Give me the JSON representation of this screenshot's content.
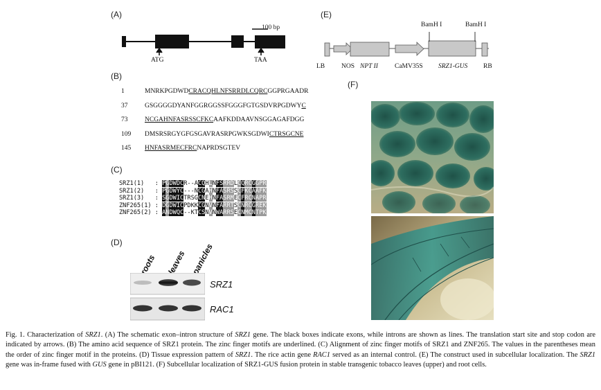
{
  "panelA": {
    "label": "(A)",
    "scale": "100 bp",
    "start": "ATG",
    "stop": "TAA"
  },
  "panelB": {
    "label": "(B)",
    "rows": [
      {
        "num": "1",
        "segs": [
          {
            "t": "MNRKPGDWD",
            "u": false
          },
          {
            "t": "CRACQHLNFSRRDLCQRC",
            "u": true
          },
          {
            "t": "GGPRGAADR",
            "u": false
          }
        ]
      },
      {
        "num": "37",
        "segs": [
          {
            "t": "GSGGGGDYANFGGRGGSSFGGGFGTGSDVRPGDWY",
            "u": false
          },
          {
            "t": "C",
            "u": true
          }
        ]
      },
      {
        "num": "73",
        "segs": [
          {
            "t": "NCGAHNFASRSSCFKC",
            "u": true
          },
          {
            "t": "AAFKDDAAVNSGGAGAFDGG",
            "u": false
          }
        ]
      },
      {
        "num": "109",
        "segs": [
          {
            "t": "DMSRSRGYGFGSGAVRASRPGWKSGDWI",
            "u": false
          },
          {
            "t": "CTRSGCNE",
            "u": true
          }
        ]
      },
      {
        "num": "145",
        "segs": [
          {
            "t": "HNFASRMECFRC",
            "u": true
          },
          {
            "t": "NAPRDSGTEV",
            "u": false
          }
        ]
      }
    ]
  },
  "panelC": {
    "label": "(C)",
    "rows": [
      {
        "name": "SRZ1(1)",
        "seq": "PGDWDCR--ACQHLNFSRRDLCQRCGGPR"
      },
      {
        "name": "SRZ1(2)",
        "seq": "PGDWYC---NCGAHNFASRSSCFKCAAFK"
      },
      {
        "name": "SRZ1(3)",
        "seq": "SGDWICTRSGCNEHNFASRMECFRCNAPR"
      },
      {
        "name": "ZNF265(1)",
        "seq": "DGDWICPDKKCGNVNFARRTSCNRCGREK"
      },
      {
        "name": "ZNF265(2)",
        "seq": "ANDWQC--KTCSNVNWARRSECNMCNTPK"
      }
    ]
  },
  "panelD": {
    "label": "(D)",
    "lanes": [
      "roots",
      "leaves",
      "panicles"
    ],
    "genes": [
      "SRZ1",
      "RAC1"
    ]
  },
  "panelE": {
    "label": "(E)",
    "site1": "BamH I",
    "site2": "BamH I",
    "labels": {
      "lb": "LB",
      "nos": "NOS",
      "npt": "NPT II",
      "camv": "CaMV35S",
      "srz": "SRZ1-GUS",
      "rb": "RB"
    }
  },
  "panelF": {
    "label": "(F)"
  },
  "caption": {
    "runs": [
      {
        "t": "Fig. 1.  Characterization of ",
        "i": false
      },
      {
        "t": "SRZ1",
        "i": true
      },
      {
        "t": ". (A) The schematic exon–intron structure of ",
        "i": false
      },
      {
        "t": "SRZ1",
        "i": true
      },
      {
        "t": " gene. The black boxes indicate exons, while introns are shown as lines. The translation start site and stop codon are indicated by arrows. (B) The amino acid sequence of SRZ1 protein. The zinc finger motifs are underlined. (C) Alignment of zinc finger motifs of SRZ1 and ZNF265. The values in the parentheses mean the order of zinc finger motif in the proteins. (D) Tissue expression pattern of ",
        "i": false
      },
      {
        "t": "SRZ1",
        "i": true
      },
      {
        "t": ". The rice actin gene ",
        "i": false
      },
      {
        "t": "RAC1",
        "i": true
      },
      {
        "t": " served as an internal control. (E) The construct used in subcellular localization. The ",
        "i": false
      },
      {
        "t": "SRZ1",
        "i": true
      },
      {
        "t": " gene was in-frame fused with ",
        "i": false
      },
      {
        "t": "GUS",
        "i": true
      },
      {
        "t": " gene in pBI121. (F) Subcellular localization of SRZ1-GUS fusion protein in stable transgenic tobacco leaves (upper) and root cells.",
        "i": false
      }
    ]
  }
}
